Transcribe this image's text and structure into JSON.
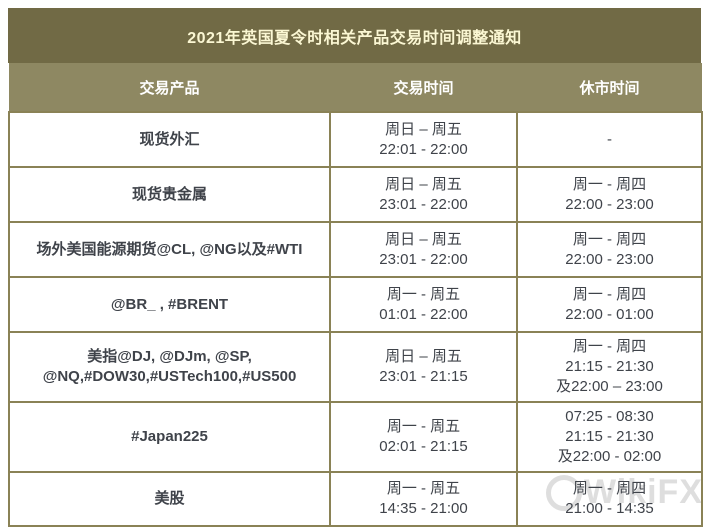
{
  "title": "2021年英国夏令时相关产品交易时间调整通知",
  "table": {
    "headers": [
      "交易产品",
      "交易时间",
      "休市时间"
    ],
    "rows": [
      {
        "product_lines": [
          "现货外汇"
        ],
        "trading_lines": [
          "周日 – 周五",
          "22:01 - 22:00"
        ],
        "close_lines": [
          "-"
        ]
      },
      {
        "product_lines": [
          "现货贵金属"
        ],
        "trading_lines": [
          "周日 – 周五",
          "23:01 - 22:00"
        ],
        "close_lines": [
          "周一 - 周四",
          "22:00 - 23:00"
        ]
      },
      {
        "product_lines": [
          "场外美国能源期货@CL, @NG以及#WTI"
        ],
        "trading_lines": [
          "周日 – 周五",
          "23:01 - 22:00"
        ],
        "close_lines": [
          "周一 - 周四",
          "22:00 - 23:00"
        ]
      },
      {
        "product_lines": [
          "@BR_ , #BRENT"
        ],
        "trading_lines": [
          "周一 - 周五",
          "01:01 - 22:00"
        ],
        "close_lines": [
          "周一 - 周四",
          "22:00 - 01:00"
        ]
      },
      {
        "product_lines": [
          "美指@DJ, @DJm, @SP,",
          "@NQ,#DOW30,#USTech100,#US500"
        ],
        "trading_lines": [
          "周日 – 周五",
          "23:01 - 21:15"
        ],
        "close_lines": [
          "周一 - 周四",
          "21:15 - 21:30",
          "及22:00 – 23:00"
        ]
      },
      {
        "product_lines": [
          "#Japan225"
        ],
        "trading_lines": [
          "周一 - 周五",
          "02:01 - 21:15"
        ],
        "close_lines": [
          "07:25 - 08:30",
          "21:15 - 21:30",
          "及22:00 - 02:00"
        ]
      },
      {
        "product_lines": [
          "美股"
        ],
        "trading_lines": [
          "周一 - 周五",
          "14:35 - 21:00"
        ],
        "close_lines": [
          "周一 - 周四",
          "21:00 - 14:35"
        ]
      }
    ]
  },
  "watermark": {
    "label": "WikiFX"
  },
  "colors": {
    "title_bar_bg": "#716A45",
    "header_bg": "#8E8862",
    "border": "#8A8256",
    "title_text": "#FBF7D3",
    "header_text": "#FFFFFF",
    "cell_text": "#3F434A",
    "watermark": "#D9D9D9"
  }
}
